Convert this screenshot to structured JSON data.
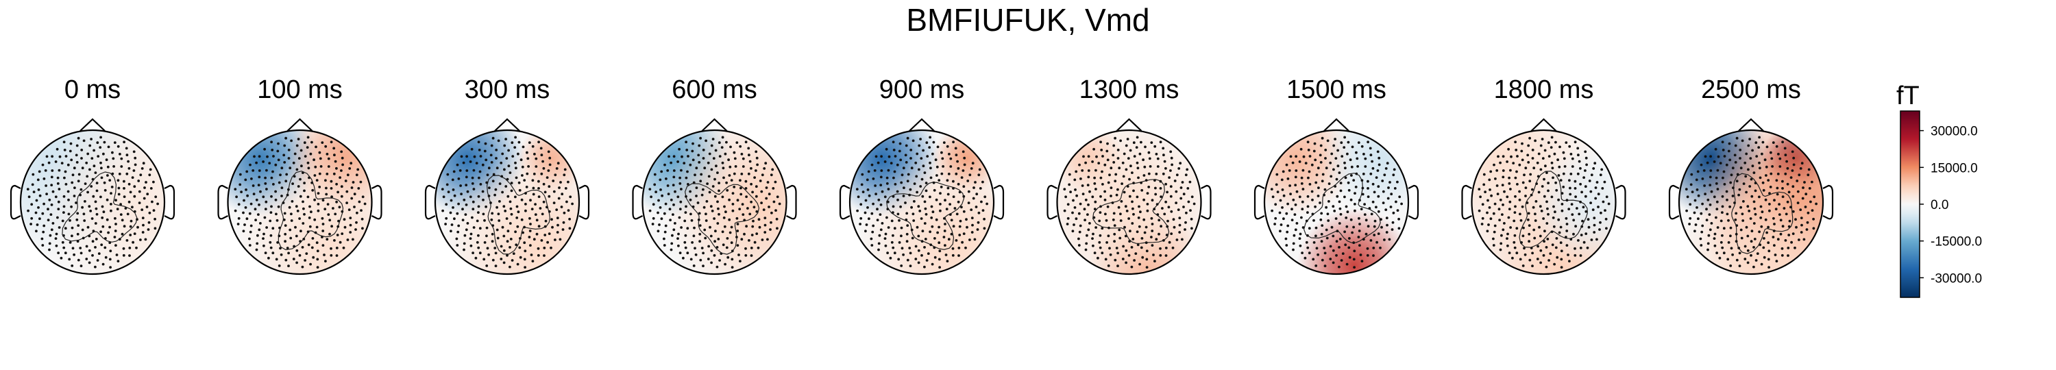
{
  "title": "BMFIUFUK, Vmd",
  "chart_data": {
    "type": "heatmap",
    "subtype": "topomap",
    "maps": [
      {
        "label": "0 ms",
        "blobs": [
          {
            "pos": "left-front",
            "value": -6000,
            "spread": "wide"
          },
          {
            "pos": "right",
            "value": 3000,
            "spread": "wide"
          }
        ]
      },
      {
        "label": "100 ms",
        "blobs": [
          {
            "pos": "left-front",
            "value": -22000,
            "spread": "medium"
          },
          {
            "pos": "right-front",
            "value": 12000,
            "spread": "medium"
          },
          {
            "pos": "right-back",
            "value": 5000,
            "spread": "wide"
          }
        ]
      },
      {
        "label": "300 ms",
        "blobs": [
          {
            "pos": "left-front",
            "value": -24000,
            "spread": "medium"
          },
          {
            "pos": "right-front",
            "value": 11000,
            "spread": "small"
          },
          {
            "pos": "right-back",
            "value": 6000,
            "spread": "wide"
          }
        ]
      },
      {
        "label": "600 ms",
        "blobs": [
          {
            "pos": "left-front",
            "value": -16000,
            "spread": "medium"
          },
          {
            "pos": "right",
            "value": 7000,
            "spread": "wide"
          }
        ]
      },
      {
        "label": "900 ms",
        "blobs": [
          {
            "pos": "left-front",
            "value": -25000,
            "spread": "medium"
          },
          {
            "pos": "right-front",
            "value": 13000,
            "spread": "small"
          },
          {
            "pos": "right-back",
            "value": 6000,
            "spread": "wide"
          }
        ]
      },
      {
        "label": "1300 ms",
        "blobs": [
          {
            "pos": "left-front",
            "value": 9000,
            "spread": "small"
          },
          {
            "pos": "back",
            "value": 12000,
            "spread": "medium"
          },
          {
            "pos": "center",
            "value": 5000,
            "spread": "wide"
          }
        ]
      },
      {
        "label": "1500 ms",
        "blobs": [
          {
            "pos": "left-front",
            "value": 10000,
            "spread": "medium"
          },
          {
            "pos": "back",
            "value": 22000,
            "spread": "medium"
          },
          {
            "pos": "right-front",
            "value": -6000,
            "spread": "medium"
          }
        ]
      },
      {
        "label": "1800 ms",
        "blobs": [
          {
            "pos": "left-front",
            "value": 5000,
            "spread": "wide"
          },
          {
            "pos": "back",
            "value": 7000,
            "spread": "wide"
          },
          {
            "pos": "right",
            "value": -3000,
            "spread": "medium"
          }
        ]
      },
      {
        "label": "2500 ms",
        "blobs": [
          {
            "pos": "left-front",
            "value": -32000,
            "spread": "medium"
          },
          {
            "pos": "right-front",
            "value": 34000,
            "spread": "small"
          },
          {
            "pos": "right",
            "value": 15000,
            "spread": "wide"
          },
          {
            "pos": "back",
            "value": 6000,
            "spread": "wide"
          }
        ]
      }
    ],
    "colorbar": {
      "unit": "fT",
      "range": [
        -38000,
        38000
      ],
      "ticks": [
        30000,
        15000,
        0,
        -15000,
        -30000
      ],
      "tick_labels": [
        "30000.0",
        "15000.0",
        "0.0",
        "-15000.0",
        "-30000.0"
      ],
      "colormap": "RdBu_r",
      "colors": {
        "neg_max": "#0a3d78",
        "zero": "#f7f7f7",
        "pos_max": "#7a0a22"
      }
    }
  }
}
